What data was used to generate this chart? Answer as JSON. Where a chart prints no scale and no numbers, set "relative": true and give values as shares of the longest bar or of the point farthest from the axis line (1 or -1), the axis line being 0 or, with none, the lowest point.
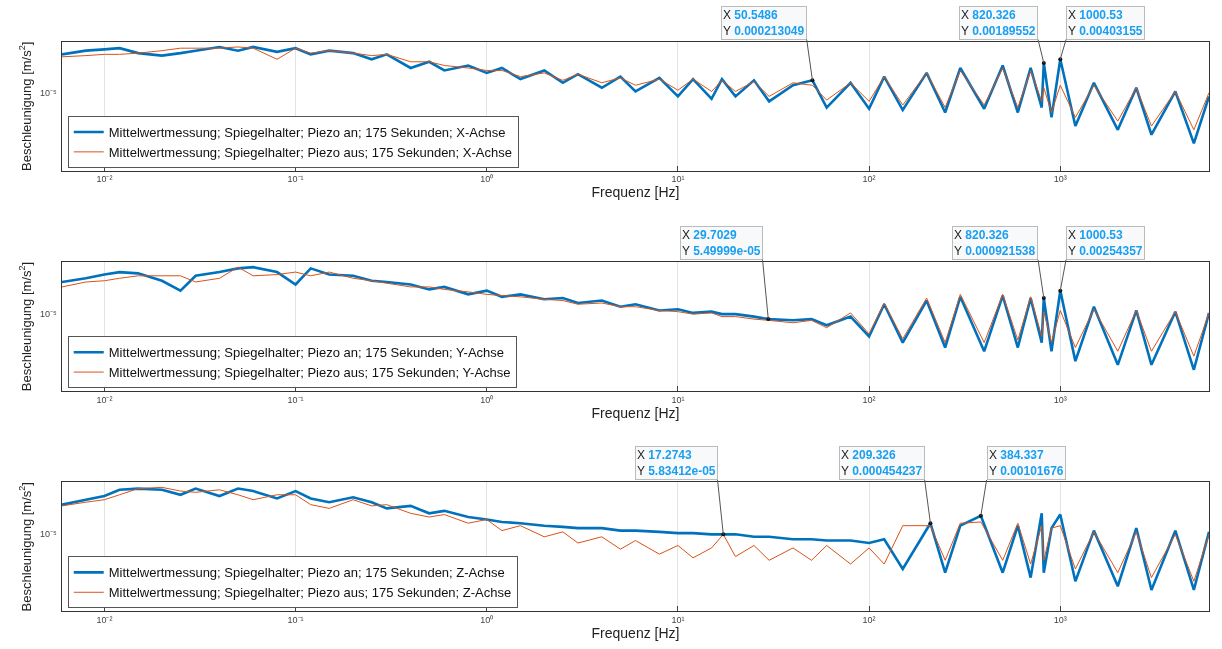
{
  "chart_data": [
    {
      "type": "line",
      "relative": true,
      "xlabel": "Frequenz [Hz]",
      "ylabel": "Beschleunigung [m/s$^{2}$]",
      "log": "x",
      "grid": true,
      "legend": "bottom left",
      "xlim": [
        0.006,
        6000
      ],
      "xticks": [
        {
          "value": 0.01,
          "label": "10⁻²"
        },
        {
          "value": 0.1,
          "label": "10⁻¹"
        },
        {
          "value": 1,
          "label": "10⁰"
        },
        {
          "value": 10,
          "label": "10¹"
        },
        {
          "value": 100,
          "label": "10²"
        },
        {
          "value": 1000,
          "label": "10³"
        }
      ],
      "x": [
        0.006,
        0.008,
        0.01,
        0.012,
        0.015,
        0.02,
        0.025,
        0.03,
        0.04,
        0.05,
        0.06,
        0.08,
        0.1,
        0.12,
        0.15,
        0.2,
        0.25,
        0.3,
        0.4,
        0.5,
        0.6,
        0.8,
        1,
        1.2,
        1.5,
        2,
        2.5,
        3,
        4,
        5,
        6,
        8,
        10,
        12,
        15,
        17,
        20,
        25,
        30,
        40,
        50.5486,
        60,
        80,
        100,
        120,
        150,
        200,
        250,
        300,
        400,
        500,
        600,
        700,
        800,
        820.326,
        900,
        1000.53,
        1200,
        1500,
        2000,
        2500,
        3000,
        4000,
        5000,
        6000
      ],
      "series": [
        {
          "name": "Mittelwertmessung; Spiegelhalter; Piezo an; 175 Sekunden; X-Achse",
          "color": "#0072bd",
          "values": [
            0.94,
            0.97,
            0.98,
            0.99,
            0.95,
            0.93,
            0.95,
            0.97,
            1,
            0.97,
            1,
            0.96,
            0.99,
            0.94,
            0.97,
            0.95,
            0.9,
            0.94,
            0.83,
            0.88,
            0.81,
            0.85,
            0.79,
            0.83,
            0.74,
            0.81,
            0.71,
            0.78,
            0.67,
            0.76,
            0.64,
            0.75,
            0.6,
            0.74,
            0.58,
            0.74,
            0.6,
            0.73,
            0.56,
            0.69,
            0.73,
            0.51,
            0.71,
            0.5,
            0.76,
            0.49,
            0.79,
            0.47,
            0.83,
            0.5,
            0.85,
            0.47,
            0.83,
            0.51,
            0.87,
            0.43,
            0.9,
            0.36,
            0.71,
            0.33,
            0.67,
            0.29,
            0.64,
            0.22,
            0.6
          ]
        },
        {
          "name": "Mittelwertmessung; Spiegelhalter; Piezo aus; 175 Sekunden; X-Achse",
          "color": "#d95319",
          "values": [
            0.92,
            0.93,
            0.94,
            0.94,
            0.95,
            0.97,
            0.99,
            0.99,
            0.99,
            1,
            0.99,
            0.9,
            0.99,
            0.95,
            0.97,
            0.95,
            0.93,
            0.94,
            0.88,
            0.88,
            0.85,
            0.83,
            0.81,
            0.81,
            0.76,
            0.79,
            0.73,
            0.78,
            0.71,
            0.75,
            0.69,
            0.74,
            0.65,
            0.74,
            0.64,
            0.73,
            0.64,
            0.72,
            0.6,
            0.71,
            0.69,
            0.57,
            0.71,
            0.56,
            0.76,
            0.53,
            0.79,
            0.51,
            0.81,
            0.53,
            0.83,
            0.51,
            0.81,
            0.56,
            0.67,
            0.47,
            0.69,
            0.43,
            0.69,
            0.4,
            0.67,
            0.36,
            0.64,
            0.33,
            0.63
          ]
        }
      ],
      "annotations": [
        "10⁻⁵",
        {
          "text": "X 50.5486\nY 0.000213049",
          "x": 50.5486,
          "y": 0.73
        },
        {
          "text": "X 820.326\nY 0.00189552",
          "x": 820.326,
          "y": 0.87
        },
        {
          "text": "X 1000.53\nY 0.00403155",
          "x": 1000.53,
          "y": 0.9
        }
      ]
    },
    {
      "type": "line",
      "relative": true,
      "xlabel": "Frequenz [Hz]",
      "ylabel": "Beschleunigung [m/s$^{2}$]",
      "log": "x",
      "grid": true,
      "legend": "bottom left",
      "xlim": [
        0.006,
        6000
      ],
      "xticks": [
        {
          "value": 0.01,
          "label": "10⁻²"
        },
        {
          "value": 0.1,
          "label": "10⁻¹"
        },
        {
          "value": 1,
          "label": "10⁰"
        },
        {
          "value": 10,
          "label": "10¹"
        },
        {
          "value": 100,
          "label": "10²"
        },
        {
          "value": 1000,
          "label": "10³"
        }
      ],
      "x": [
        0.006,
        0.008,
        0.01,
        0.012,
        0.015,
        0.02,
        0.025,
        0.03,
        0.04,
        0.05,
        0.06,
        0.08,
        0.1,
        0.12,
        0.15,
        0.2,
        0.25,
        0.3,
        0.4,
        0.5,
        0.6,
        0.8,
        1,
        1.2,
        1.5,
        2,
        2.5,
        3,
        4,
        5,
        6,
        8,
        10,
        12,
        15,
        17,
        20,
        25,
        29.7029,
        40,
        50,
        60,
        80,
        100,
        120,
        150,
        200,
        250,
        300,
        400,
        500,
        600,
        700,
        800,
        820.326,
        900,
        1000.53,
        1200,
        1500,
        2000,
        2500,
        3000,
        4000,
        5000,
        6000
      ],
      "series": [
        {
          "name": "Mittelwertmessung; Spiegelhalter; Piezo an; 175 Sekunden; Y-Achse",
          "color": "#0072bd",
          "values": [
            0.88,
            0.91,
            0.94,
            0.96,
            0.95,
            0.89,
            0.81,
            0.93,
            0.96,
            0.99,
            1,
            0.96,
            0.86,
            0.99,
            0.94,
            0.93,
            0.89,
            0.88,
            0.86,
            0.82,
            0.84,
            0.78,
            0.81,
            0.76,
            0.78,
            0.74,
            0.75,
            0.71,
            0.73,
            0.68,
            0.7,
            0.65,
            0.66,
            0.63,
            0.64,
            0.62,
            0.62,
            0.6,
            0.58,
            0.57,
            0.58,
            0.53,
            0.6,
            0.44,
            0.7,
            0.39,
            0.73,
            0.35,
            0.76,
            0.32,
            0.77,
            0.35,
            0.75,
            0.39,
            0.75,
            0.32,
            0.81,
            0.24,
            0.68,
            0.21,
            0.65,
            0.21,
            0.64,
            0.17,
            0.63
          ]
        },
        {
          "name": "Mittelwertmessung; Spiegelhalter; Piezo aus; 175 Sekunden; Y-Achse",
          "color": "#d95319",
          "values": [
            0.84,
            0.88,
            0.89,
            0.91,
            0.93,
            0.93,
            0.93,
            0.88,
            0.91,
            1,
            0.93,
            0.94,
            0.96,
            0.93,
            0.96,
            0.91,
            0.89,
            0.87,
            0.84,
            0.84,
            0.82,
            0.8,
            0.78,
            0.77,
            0.76,
            0.74,
            0.73,
            0.7,
            0.71,
            0.68,
            0.68,
            0.65,
            0.64,
            0.62,
            0.63,
            0.6,
            0.6,
            0.58,
            0.57,
            0.55,
            0.57,
            0.51,
            0.63,
            0.46,
            0.71,
            0.42,
            0.75,
            0.39,
            0.78,
            0.39,
            0.78,
            0.41,
            0.76,
            0.44,
            0.64,
            0.39,
            0.65,
            0.35,
            0.66,
            0.32,
            0.65,
            0.32,
            0.64,
            0.28,
            0.63
          ]
        }
      ],
      "annotations": [
        "10⁻⁵",
        {
          "text": "X 29.7029\nY 5.49999e-05",
          "x": 29.7029,
          "y": 0.58
        },
        {
          "text": "X 820.326\nY 0.000921538",
          "x": 820.326,
          "y": 0.75
        },
        {
          "text": "X 1000.53\nY 0.00254357",
          "x": 1000.53,
          "y": 0.81
        }
      ]
    },
    {
      "type": "line",
      "relative": true,
      "xlabel": "Frequenz [Hz]",
      "ylabel": "Beschleunigung [m/s$^{2}$]",
      "log": "x",
      "grid": true,
      "legend": "bottom left",
      "xlim": [
        0.006,
        6000
      ],
      "xticks": [
        {
          "value": 0.01,
          "label": "10⁻²"
        },
        {
          "value": 0.1,
          "label": "10⁻¹"
        },
        {
          "value": 1,
          "label": "10⁰"
        },
        {
          "value": 10,
          "label": "10¹"
        },
        {
          "value": 100,
          "label": "10²"
        },
        {
          "value": 1000,
          "label": "10³"
        }
      ],
      "x": [
        0.006,
        0.008,
        0.01,
        0.012,
        0.015,
        0.02,
        0.025,
        0.03,
        0.04,
        0.05,
        0.06,
        0.08,
        0.1,
        0.12,
        0.15,
        0.2,
        0.25,
        0.3,
        0.4,
        0.5,
        0.6,
        0.8,
        1,
        1.2,
        1.5,
        2,
        2.5,
        3,
        4,
        5,
        6,
        8,
        10,
        12,
        15,
        17.2743,
        20,
        25,
        30,
        40,
        50,
        60,
        80,
        100,
        120,
        150,
        209.326,
        250,
        300,
        384.337,
        500,
        600,
        700,
        800,
        820,
        900,
        1000,
        1200,
        1500,
        2000,
        2500,
        3000,
        4000,
        5000,
        6000
      ],
      "series": [
        {
          "name": "Mittelwertmessung; Spiegelhalter; Piezo an; 175 Sekunden; Z-Achse",
          "color": "#0072bd",
          "values": [
            0.86,
            0.9,
            0.93,
            0.98,
            0.99,
            0.98,
            0.94,
            0.99,
            0.93,
            0.99,
            0.97,
            0.91,
            0.97,
            0.91,
            0.88,
            0.92,
            0.88,
            0.83,
            0.85,
            0.79,
            0.81,
            0.76,
            0.74,
            0.72,
            0.71,
            0.69,
            0.68,
            0.67,
            0.67,
            0.65,
            0.65,
            0.64,
            0.63,
            0.63,
            0.62,
            0.62,
            0.62,
            0.6,
            0.6,
            0.58,
            0.58,
            0.57,
            0.57,
            0.55,
            0.58,
            0.34,
            0.71,
            0.31,
            0.69,
            0.77,
            0.31,
            0.69,
            0.27,
            0.79,
            0.31,
            0.67,
            0.78,
            0.24,
            0.65,
            0.2,
            0.67,
            0.17,
            0.65,
            0.17,
            0.64
          ]
        },
        {
          "name": "Mittelwertmessung; Spiegelhalter; Piezo aus; 175 Sekunden; Z-Achse",
          "color": "#d95319",
          "values": [
            0.85,
            0.88,
            0.9,
            0.94,
            0.99,
            1,
            0.97,
            0.96,
            0.98,
            0.94,
            0.9,
            0.94,
            0.94,
            0.86,
            0.83,
            0.9,
            0.85,
            0.86,
            0.79,
            0.76,
            0.78,
            0.71,
            0.74,
            0.65,
            0.69,
            0.6,
            0.64,
            0.55,
            0.6,
            0.5,
            0.57,
            0.46,
            0.53,
            0.43,
            0.51,
            0.62,
            0.44,
            0.53,
            0.41,
            0.51,
            0.41,
            0.53,
            0.38,
            0.51,
            0.38,
            0.69,
            0.69,
            0.41,
            0.71,
            0.72,
            0.41,
            0.71,
            0.38,
            0.69,
            0.41,
            0.67,
            0.69,
            0.34,
            0.64,
            0.31,
            0.64,
            0.27,
            0.62,
            0.24,
            0.62
          ]
        }
      ],
      "annotations": [
        "10⁻⁵",
        {
          "text": "X 17.2743\nY 5.83412e-05",
          "x": 17.2743,
          "y": 0.62
        },
        {
          "text": "X 209.326\nY 0.000454237",
          "x": 209.326,
          "y": 0.71
        },
        {
          "text": "X 384.337\nY 0.00101676",
          "x": 384.337,
          "y": 0.77
        }
      ]
    }
  ]
}
